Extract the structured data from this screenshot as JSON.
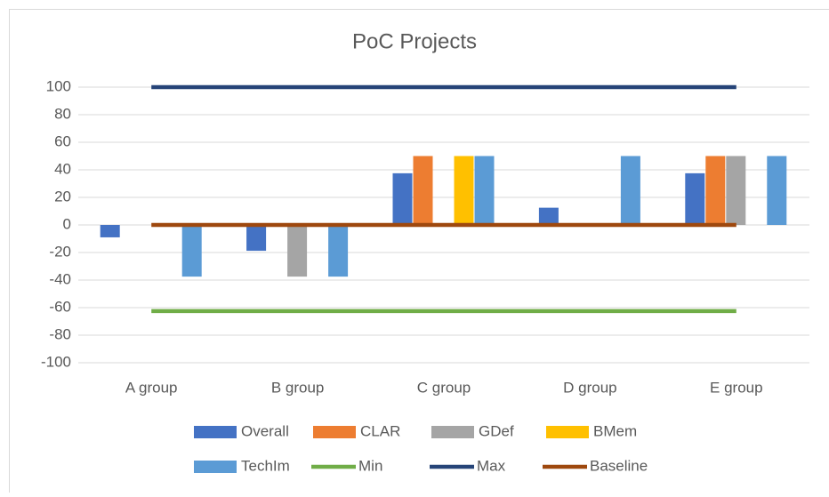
{
  "chart_data": {
    "type": "bar",
    "title": "PoC Projects",
    "categories": [
      "A group",
      "B group",
      "C group",
      "D group",
      "E group"
    ],
    "series": [
      {
        "name": "Overall",
        "color": "#4472c4",
        "values": [
          -9,
          -18.75,
          37.5,
          12.5,
          37.5
        ]
      },
      {
        "name": "CLAR",
        "color": "#ed7d31",
        "values": [
          0,
          0,
          50,
          0,
          50
        ]
      },
      {
        "name": "GDef",
        "color": "#a5a5a5",
        "values": [
          0,
          -37.5,
          0,
          0,
          50
        ]
      },
      {
        "name": "BMem",
        "color": "#ffc000",
        "values": [
          0,
          0,
          50,
          0,
          0
        ]
      },
      {
        "name": "TechIm",
        "color": "#5b9bd5",
        "values": [
          -37.5,
          -37.5,
          50,
          50,
          50
        ]
      },
      {
        "name": "Min",
        "color": "#70ad47",
        "type": "line",
        "values": [
          -62.5,
          -62.5,
          -62.5,
          -62.5,
          -62.5
        ]
      },
      {
        "name": "Max",
        "color": "#264478",
        "type": "line",
        "values": [
          100,
          100,
          100,
          100,
          100
        ]
      },
      {
        "name": "Baseline",
        "color": "#9e480e",
        "type": "line",
        "values": [
          0,
          0,
          0,
          0,
          0
        ]
      }
    ],
    "ylim": [
      -100,
      100
    ],
    "yticks": [
      -100,
      -80,
      -60,
      -40,
      -20,
      0,
      20,
      40,
      60,
      80,
      100
    ],
    "grid": true,
    "legend": "bottom"
  }
}
